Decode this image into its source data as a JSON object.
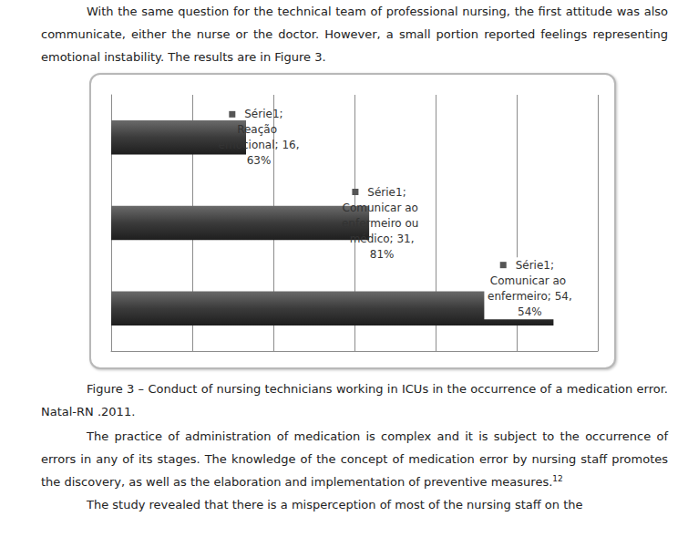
{
  "paragraphs_top": [
    {
      "text": "With the same question for the technical team of professional nursing, the first attitude was also communicate, either the nurse or the doctor. However, a small portion reported feelings representing emotional instability. The results are in Figure 3."
    }
  ],
  "chart_data": {
    "type": "bar",
    "orientation": "horizontal",
    "categories": [
      "Reação emocional",
      "Comunicar ao enfermeiro ou médico",
      "Comunicar ao enfermeiro"
    ],
    "values": [
      16.63,
      31.81,
      54.54
    ],
    "value_labels": [
      "Série1; Reação emocional; 16,63%",
      "Série1; Comunicar ao enfermeiro ou médico; 31,81%",
      "Série1; Comunicar ao enfermeiro; 54,54%"
    ],
    "data_labels": true,
    "color": "#3b3b3b",
    "xlim": [
      0,
      60
    ],
    "xticks": [
      0,
      10,
      20,
      30,
      40,
      50,
      60
    ],
    "grid": true,
    "tick_labels": false
  },
  "caption": "Figure 3 – Conduct of nursing technicians working in ICUs in the occurrence of a medication error. Natal-RN .2011.",
  "paragraphs_bottom": [
    {
      "text": "The practice of administration of medication is complex and it is subject to the occurrence of errors in any of its stages. The knowledge of the concept of medication error by nursing staff promotes the discovery, as well as the elaboration and implementation of preventive measures.",
      "superscript": "12"
    },
    {
      "text": "The study revealed that there is a misperception of most of the nursing staff on the"
    }
  ]
}
